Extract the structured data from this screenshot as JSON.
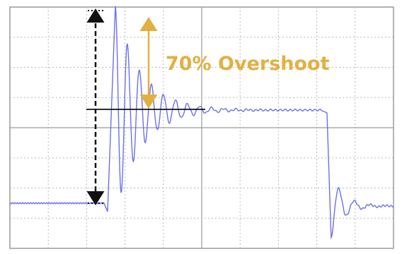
{
  "annotation": "70% Overshoot"
}
